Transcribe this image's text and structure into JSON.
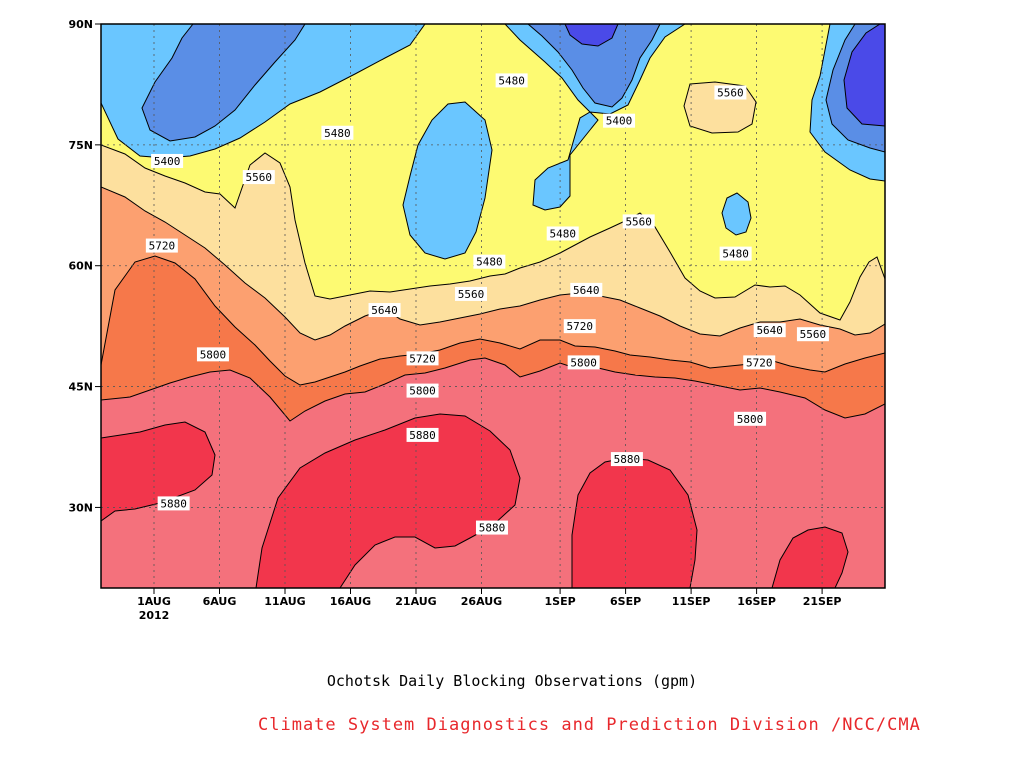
{
  "chart_data": {
    "type": "heatmap",
    "title": "Ochotsk Daily Blocking Observations (gpm)",
    "source": "Climate System Diagnostics and Prediction Division /NCC/CMA",
    "x_tick_labels": [
      "1AUG",
      "6AUG",
      "11AUG",
      "16AUG",
      "21AUG",
      "26AUG",
      "1SEP",
      "6SEP",
      "11SEP",
      "16SEP",
      "21SEP"
    ],
    "x_year_label": "2012",
    "y_tick_labels": [
      "90N",
      "75N",
      "60N",
      "45N",
      "30N"
    ],
    "y_ticks": [
      90,
      75,
      60,
      45,
      30
    ],
    "ylim": [
      20,
      90
    ],
    "contour_levels": [
      5400,
      5480,
      5560,
      5640,
      5720,
      5800,
      5880
    ],
    "contour_labels": [
      {
        "text": "5400",
        "day": 1.0,
        "lat": 73.0
      },
      {
        "text": "5480",
        "day": 14.0,
        "lat": 76.5
      },
      {
        "text": "5560",
        "day": 8.0,
        "lat": 71.0
      },
      {
        "text": "5480",
        "day": 27.3,
        "lat": 83.0
      },
      {
        "text": "5400",
        "day": 35.5,
        "lat": 78.0
      },
      {
        "text": "5560",
        "day": 44.0,
        "lat": 81.5
      },
      {
        "text": "5480",
        "day": 31.2,
        "lat": 64.0
      },
      {
        "text": "5560",
        "day": 37.0,
        "lat": 65.5
      },
      {
        "text": "5480",
        "day": 44.4,
        "lat": 61.5
      },
      {
        "text": "5480",
        "day": 25.6,
        "lat": 60.5
      },
      {
        "text": "5720",
        "day": 0.6,
        "lat": 62.5
      },
      {
        "text": "5560",
        "day": 24.2,
        "lat": 56.5
      },
      {
        "text": "5640",
        "day": 17.6,
        "lat": 54.5
      },
      {
        "text": "5640",
        "day": 33.0,
        "lat": 57.0
      },
      {
        "text": "5720",
        "day": 32.5,
        "lat": 52.5
      },
      {
        "text": "5640",
        "day": 47.0,
        "lat": 52.0
      },
      {
        "text": "5560",
        "day": 50.3,
        "lat": 51.5
      },
      {
        "text": "5800",
        "day": 4.5,
        "lat": 49.0
      },
      {
        "text": "5720",
        "day": 20.5,
        "lat": 48.5
      },
      {
        "text": "5800",
        "day": 32.8,
        "lat": 48.0
      },
      {
        "text": "5720",
        "day": 46.2,
        "lat": 48.0
      },
      {
        "text": "5800",
        "day": 20.5,
        "lat": 44.5
      },
      {
        "text": "5800",
        "day": 45.5,
        "lat": 41.0
      },
      {
        "text": "5880",
        "day": 20.5,
        "lat": 39.0
      },
      {
        "text": "5880",
        "day": 36.1,
        "lat": 36.0
      },
      {
        "text": "5880",
        "day": 1.5,
        "lat": 30.5
      },
      {
        "text": "5880",
        "day": 25.8,
        "lat": 27.5
      }
    ],
    "colors": {
      "lt5320": "#4a4ae8",
      "5320-5400": "#5a8ee6",
      "5400-5480": "#6ac6ff",
      "5480-5560": "#fdfa72",
      "5560-5640": "#fde09e",
      "5640-5720": "#fca070",
      "5720-5800": "#f6784a",
      "5800-5880": "#f4717c",
      "gt5880": "#f2364c",
      "source_text": "#e8282c"
    }
  }
}
